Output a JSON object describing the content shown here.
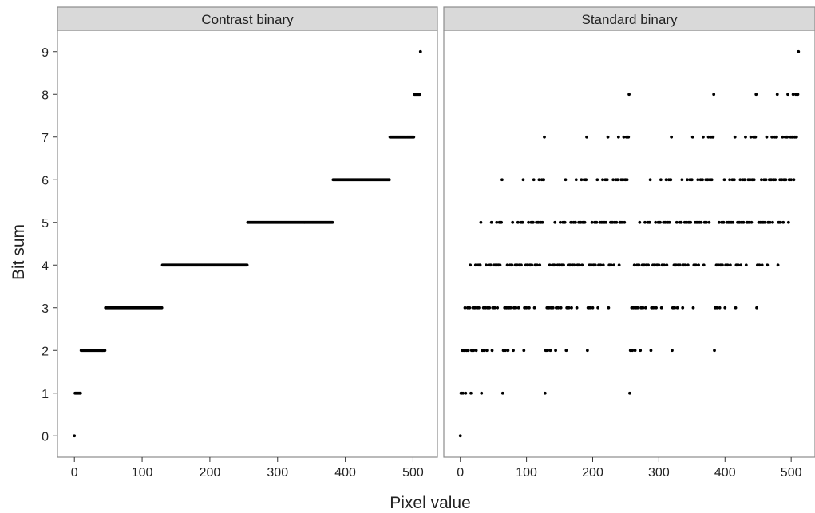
{
  "chart_data": {
    "type": "scatter",
    "x_label": "Pixel value",
    "y_label": "Bit sum",
    "x_range": [
      -25,
      536
    ],
    "y_range": [
      -0.5,
      9.5
    ],
    "x_ticks": [
      0,
      100,
      200,
      300,
      400,
      500
    ],
    "y_ticks": [
      0,
      1,
      2,
      3,
      4,
      5,
      6,
      7,
      8,
      9
    ],
    "grid": false,
    "colors": {
      "points": "#000000",
      "strip_fill": "#d9d9d9",
      "panel_border": "#8c8c8c"
    },
    "panels": [
      {
        "title": "Contrast binary",
        "x_min": 0,
        "x_max": 511,
        "levels": [
          {
            "bit_sum": 0,
            "x_start": 0,
            "x_end": 0
          },
          {
            "bit_sum": 1,
            "x_start": 1,
            "x_end": 9
          },
          {
            "bit_sum": 2,
            "x_start": 10,
            "x_end": 45
          },
          {
            "bit_sum": 3,
            "x_start": 46,
            "x_end": 129
          },
          {
            "bit_sum": 4,
            "x_start": 130,
            "x_end": 255
          },
          {
            "bit_sum": 5,
            "x_start": 256,
            "x_end": 381
          },
          {
            "bit_sum": 6,
            "x_start": 382,
            "x_end": 465
          },
          {
            "bit_sum": 7,
            "x_start": 466,
            "x_end": 501
          },
          {
            "bit_sum": 8,
            "x_start": 502,
            "x_end": 510
          },
          {
            "bit_sum": 9,
            "x_start": 511,
            "x_end": 511
          }
        ]
      },
      {
        "title": "Standard binary",
        "x_min": 0,
        "x_max": 511,
        "bits": 9,
        "points_rule": "y = number of 1 bits in the 9-bit binary representation of x, for every integer x from 0 to 511"
      }
    ]
  }
}
